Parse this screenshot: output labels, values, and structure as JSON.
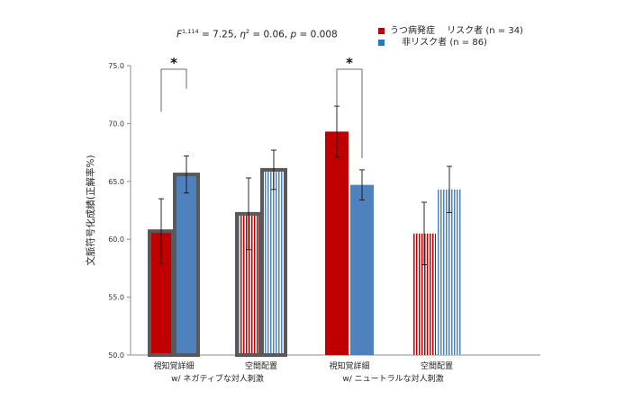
{
  "stat_text": {
    "prefix": "F",
    "superscript": "1,114",
    "part1": " = 7.25, ",
    "eta": "η",
    "part2": "2",
    "part3": " = 0.06, ",
    "p": "p",
    "part4": " = 0.008"
  },
  "legend": [
    {
      "label": "うつ病発症　 リスク者 (n = 34)",
      "color": "#c00000"
    },
    {
      "label": "　 非リスク者 (n = 86)",
      "color": "#2e75b6"
    }
  ],
  "chart_data": {
    "type": "bar",
    "ylabel": "文脈符号化成績(正解率%)",
    "ylim": [
      50.0,
      75.0
    ],
    "yticks": [
      "50.0",
      "55.0",
      "60.0",
      "65.0",
      "70.0",
      "75.0"
    ],
    "categories": [
      "視知覚詳細",
      "空間配置",
      "視知覚詳細",
      "空間配置"
    ],
    "groups": [
      "w/ ネガティブな対人刺激",
      "w/ ニュートラルな対人刺激"
    ],
    "series": [
      {
        "name": "うつ病発症　 リスク者 (n = 34)",
        "color": "#c00000",
        "values": [
          60.7,
          62.2,
          69.3,
          60.5
        ],
        "errors": [
          2.8,
          3.1,
          2.2,
          2.7
        ]
      },
      {
        "name": "非リスク者 (n = 86)",
        "color": "#4f81bd",
        "values": [
          65.6,
          66.0,
          64.7,
          64.3
        ],
        "errors": [
          1.6,
          1.7,
          1.3,
          2.0
        ]
      }
    ],
    "significance": [
      {
        "category_index": 0,
        "label": "*"
      },
      {
        "category_index": 2,
        "label": "*"
      }
    ],
    "highlighted_categories": [
      0,
      1
    ],
    "hatched_categories": [
      1,
      3
    ],
    "grid": false
  }
}
